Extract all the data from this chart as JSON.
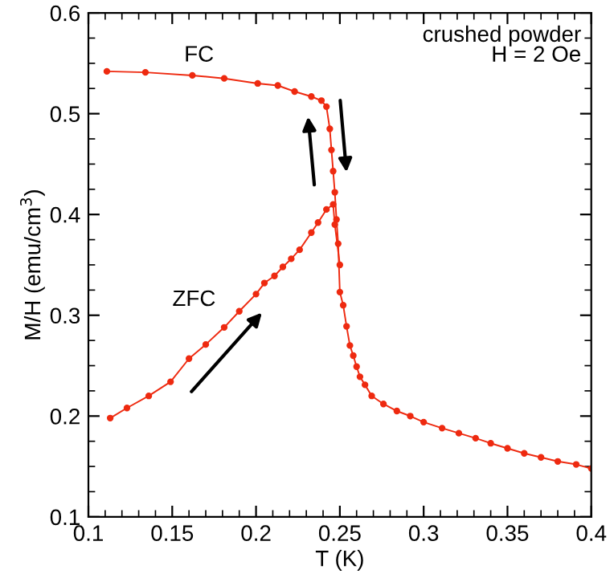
{
  "chart_data": {
    "type": "line",
    "xlabel": "T (K)",
    "ylabel": "M/H (emu/cm$^{3}$)",
    "xlim": [
      0.1,
      0.4
    ],
    "xticks": [
      0.1,
      0.15,
      0.2,
      0.25,
      0.3,
      0.35,
      0.4
    ],
    "ylim": [
      0.1,
      0.6
    ],
    "yticks": [
      0.1,
      0.2,
      0.3,
      0.4,
      0.5,
      0.6
    ],
    "grid": false,
    "marker": "circle",
    "line_style": "solid",
    "annotations": [
      "crushed powder\nH = 2 Oe"
    ],
    "series": [
      {
        "name": "FC",
        "color": "#ee2a10",
        "x": [
          0.111,
          0.134,
          0.162,
          0.181,
          0.201,
          0.213,
          0.223,
          0.233,
          0.239,
          0.242,
          0.244,
          0.245,
          0.246,
          0.247,
          0.248,
          0.249,
          0.25,
          0.252,
          0.254,
          0.256,
          0.258,
          0.26,
          0.262,
          0.265,
          0.269,
          0.276,
          0.284,
          0.292,
          0.3,
          0.311,
          0.321,
          0.331,
          0.34,
          0.35,
          0.36,
          0.37,
          0.38,
          0.391,
          0.4
        ],
        "values": [
          0.542,
          0.541,
          0.538,
          0.535,
          0.53,
          0.528,
          0.522,
          0.517,
          0.513,
          0.507,
          0.485,
          0.464,
          0.443,
          0.422,
          0.395,
          0.371,
          0.323,
          0.31,
          0.289,
          0.27,
          0.26,
          0.249,
          0.239,
          0.231,
          0.22,
          0.212,
          0.205,
          0.2,
          0.194,
          0.188,
          0.183,
          0.178,
          0.173,
          0.168,
          0.163,
          0.159,
          0.155,
          0.152,
          0.148
        ]
      },
      {
        "name": "ZFC",
        "color": "#ee2a10",
        "x": [
          0.113,
          0.123,
          0.136,
          0.149,
          0.16,
          0.17,
          0.181,
          0.19,
          0.2,
          0.205,
          0.211,
          0.216,
          0.221,
          0.226,
          0.233,
          0.237,
          0.242,
          0.246,
          0.247,
          0.25
        ],
        "values": [
          0.198,
          0.208,
          0.22,
          0.234,
          0.257,
          0.271,
          0.288,
          0.304,
          0.321,
          0.332,
          0.339,
          0.348,
          0.356,
          0.365,
          0.382,
          0.392,
          0.405,
          0.41,
          0.39,
          0.35
        ]
      }
    ]
  }
}
